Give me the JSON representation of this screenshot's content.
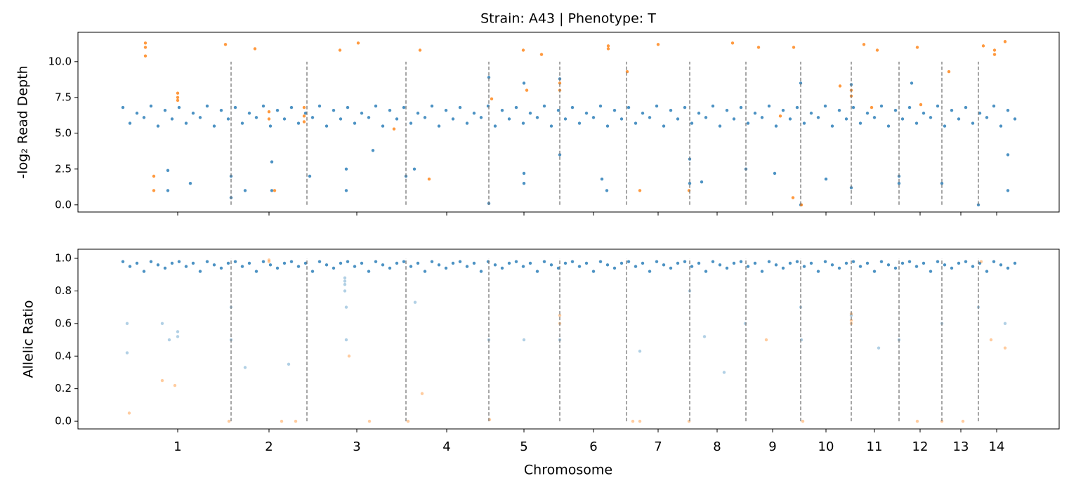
{
  "chart_data": [
    {
      "type": "scatter",
      "title": "Strain: A43 | Phenotype: T",
      "ylabel": "-log₂ Read Depth",
      "xlim": [
        0,
        1397
      ],
      "ylim": [
        -0.5,
        12.05
      ],
      "yticks": [
        {
          "value": 0,
          "label": "0.0"
        },
        {
          "value": 2.5,
          "label": "2.5"
        },
        {
          "value": 5,
          "label": "5.0"
        },
        {
          "value": 7.5,
          "label": "7.5"
        },
        {
          "value": 10,
          "label": "10.0"
        }
      ],
      "boundaries": [
        218,
        326,
        467,
        585,
        686,
        781,
        871,
        951,
        1029,
        1101,
        1169,
        1230,
        1282
      ],
      "boundary_span": [
        0,
        10
      ],
      "series": [
        {
          "color": "#1f77b4",
          "alpha": 0.8,
          "x": [
            64,
            74,
            84,
            94,
            104,
            114,
            124,
            134,
            144,
            154,
            164,
            174,
            184,
            194,
            204,
            214,
            224,
            234,
            244,
            254,
            264,
            274,
            284,
            294,
            304,
            314,
            324,
            334,
            344,
            354,
            364,
            374,
            384,
            394,
            404,
            414,
            424,
            434,
            444,
            454,
            464,
            474,
            484,
            494,
            504,
            514,
            524,
            534,
            544,
            554,
            564,
            574,
            584,
            594,
            604,
            614,
            624,
            634,
            644,
            654,
            664,
            674,
            684,
            694,
            704,
            714,
            724,
            734,
            744,
            754,
            764,
            774,
            784,
            794,
            804,
            814,
            824,
            834,
            844,
            854,
            864,
            874,
            884,
            894,
            904,
            914,
            924,
            934,
            944,
            954,
            964,
            974,
            984,
            994,
            1004,
            1014,
            1024,
            1034,
            1044,
            1054,
            1064,
            1074,
            1084,
            1094,
            1104,
            1114,
            1124,
            1134,
            1144,
            1154,
            1164,
            1174,
            1184,
            1194,
            1204,
            1214,
            1224,
            1234,
            1244,
            1254,
            1264,
            1274,
            1284,
            1294,
            1304,
            1314,
            1324,
            1334
          ],
          "values": [
            6.8,
            5.7,
            6.4,
            6.1,
            6.9,
            5.5,
            6.6,
            6.0,
            6.8,
            5.7,
            6.4,
            6.1,
            6.9,
            5.5,
            6.6,
            6.0,
            6.8,
            5.7,
            6.4,
            6.1,
            6.9,
            5.5,
            6.6,
            6.0,
            6.8,
            5.7,
            6.4,
            6.1,
            6.9,
            5.5,
            6.6,
            6.0,
            6.8,
            5.7,
            6.4,
            6.1,
            6.9,
            5.5,
            6.6,
            6.0,
            6.8,
            5.7,
            6.4,
            6.1,
            6.9,
            5.5,
            6.6,
            6.0,
            6.8,
            5.7,
            6.4,
            6.1,
            6.9,
            5.5,
            6.6,
            6.0,
            6.8,
            5.7,
            6.4,
            6.1,
            6.9,
            5.5,
            6.6,
            6.0,
            6.8,
            5.7,
            6.4,
            6.1,
            6.9,
            5.5,
            6.6,
            6.0,
            6.8,
            5.7,
            6.4,
            6.1,
            6.9,
            5.5,
            6.6,
            6.0,
            6.8,
            5.7,
            6.4,
            6.1,
            6.9,
            5.5,
            6.6,
            6.0,
            6.8,
            5.7,
            6.4,
            6.1,
            6.9,
            5.5,
            6.6,
            6.0,
            6.8,
            5.7,
            6.4,
            6.1,
            6.9,
            5.5,
            6.6,
            6.0,
            6.8,
            5.7,
            6.4,
            6.1,
            6.9,
            5.5,
            6.6,
            6.0,
            6.8,
            5.7,
            6.4,
            6.1,
            6.9,
            5.5,
            6.6,
            6.0,
            6.8,
            5.7,
            6.4,
            6.1,
            6.9,
            5.5,
            6.6,
            6.0
          ]
        },
        {
          "color": "#1f77b4",
          "alpha": 0.8,
          "x": [
            128,
            128,
            160,
            218,
            218,
            238,
            276,
            276,
            330,
            382,
            382,
            420,
            467,
            479,
            585,
            635,
            635,
            686,
            686,
            746,
            753,
            871,
            871,
            888,
            951,
            992,
            1029,
            1029,
            1065,
            1101,
            1101,
            1169,
            1169,
            1187,
            1230,
            1282,
            1324,
            1324,
            635,
            585
          ],
          "values": [
            2.4,
            1.0,
            1.5,
            2.0,
            0.5,
            1.0,
            1.0,
            3.0,
            2.0,
            2.5,
            1.0,
            3.8,
            2.0,
            2.5,
            0.1,
            2.2,
            1.5,
            3.5,
            8.8,
            1.8,
            1.0,
            3.2,
            1.5,
            1.6,
            2.5,
            2.2,
            0.0,
            8.5,
            1.8,
            1.2,
            8.4,
            2.0,
            1.5,
            8.5,
            1.5,
            0.0,
            1.0,
            3.5,
            8.5,
            8.9
          ]
        },
        {
          "color": "#ff7f0e",
          "alpha": 0.8,
          "x": [
            96,
            96,
            96,
            142,
            142,
            142,
            108,
            108,
            210,
            252,
            272,
            272,
            322,
            322,
            322,
            373,
            399,
            487,
            589,
            634,
            639,
            660,
            686,
            686,
            755,
            755,
            782,
            826,
            932,
            969,
            1019,
            1085,
            1101,
            1101,
            1119,
            1138,
            1195,
            1240,
            1289,
            1305,
            1320,
            1305,
            870,
            800,
            280,
            1030,
            1018,
            1130,
            1200,
            1000,
            450,
            500
          ],
          "values": [
            11.3,
            11.0,
            10.4,
            7.8,
            7.5,
            7.3,
            1.0,
            2.0,
            11.2,
            10.9,
            6.5,
            6.0,
            6.8,
            6.2,
            5.8,
            10.8,
            11.3,
            10.8,
            7.4,
            10.8,
            8.0,
            10.5,
            8.5,
            8.0,
            11.1,
            10.9,
            9.3,
            11.2,
            11.3,
            11.0,
            11.0,
            8.3,
            8.0,
            7.6,
            11.2,
            10.8,
            11.0,
            9.3,
            11.1,
            10.8,
            11.4,
            10.5,
            1.0,
            1.0,
            1.0,
            0.0,
            0.5,
            6.8,
            7.0,
            6.2,
            5.3,
            1.8
          ]
        }
      ]
    },
    {
      "type": "scatter",
      "ylabel": "Allelic Ratio",
      "xlabel": "Chromosome",
      "xlim": [
        0,
        1397
      ],
      "ylim": [
        -0.047,
        1.056
      ],
      "xticks": [
        {
          "value": 142,
          "label": "1"
        },
        {
          "value": 272,
          "label": "2"
        },
        {
          "value": 397,
          "label": "3"
        },
        {
          "value": 525,
          "label": "4"
        },
        {
          "value": 635,
          "label": "5"
        },
        {
          "value": 734,
          "label": "6"
        },
        {
          "value": 826,
          "label": "7"
        },
        {
          "value": 910,
          "label": "8"
        },
        {
          "value": 989,
          "label": "9"
        },
        {
          "value": 1065,
          "label": "10"
        },
        {
          "value": 1134,
          "label": "11"
        },
        {
          "value": 1199,
          "label": "12"
        },
        {
          "value": 1257,
          "label": "13"
        },
        {
          "value": 1308,
          "label": "14"
        }
      ],
      "yticks": [
        {
          "value": 0,
          "label": "0.0"
        },
        {
          "value": 0.2,
          "label": "0.2"
        },
        {
          "value": 0.4,
          "label": "0.4"
        },
        {
          "value": 0.6,
          "label": "0.6"
        },
        {
          "value": 0.8,
          "label": "0.8"
        },
        {
          "value": 1,
          "label": "1.0"
        }
      ],
      "boundaries": [
        218,
        326,
        467,
        585,
        686,
        781,
        871,
        951,
        1029,
        1101,
        1169,
        1230,
        1282
      ],
      "boundary_span": [
        0,
        1
      ],
      "series": [
        {
          "color": "#1f77b4",
          "alpha": 0.8,
          "x": [
            64,
            74,
            84,
            94,
            104,
            114,
            124,
            134,
            144,
            154,
            164,
            174,
            184,
            194,
            204,
            214,
            224,
            234,
            244,
            254,
            264,
            274,
            284,
            294,
            304,
            314,
            324,
            334,
            344,
            354,
            364,
            374,
            384,
            394,
            404,
            414,
            424,
            434,
            444,
            454,
            464,
            474,
            484,
            494,
            504,
            514,
            524,
            534,
            544,
            554,
            564,
            574,
            584,
            594,
            604,
            614,
            624,
            634,
            644,
            654,
            664,
            674,
            684,
            694,
            704,
            714,
            724,
            734,
            744,
            754,
            764,
            774,
            784,
            794,
            804,
            814,
            824,
            834,
            844,
            854,
            864,
            874,
            884,
            894,
            904,
            914,
            924,
            934,
            944,
            954,
            964,
            974,
            984,
            994,
            1004,
            1014,
            1024,
            1034,
            1044,
            1054,
            1064,
            1074,
            1084,
            1094,
            1104,
            1114,
            1124,
            1134,
            1144,
            1154,
            1164,
            1174,
            1184,
            1194,
            1204,
            1214,
            1224,
            1234,
            1244,
            1254,
            1264,
            1274,
            1284,
            1294,
            1304,
            1314,
            1324,
            1334
          ],
          "values": [
            0.98,
            0.95,
            0.97,
            0.92,
            0.98,
            0.96,
            0.94,
            0.97,
            0.98,
            0.95,
            0.97,
            0.92,
            0.98,
            0.96,
            0.94,
            0.97,
            0.98,
            0.95,
            0.97,
            0.92,
            0.98,
            0.96,
            0.94,
            0.97,
            0.98,
            0.95,
            0.97,
            0.92,
            0.98,
            0.96,
            0.94,
            0.97,
            0.98,
            0.95,
            0.97,
            0.92,
            0.98,
            0.96,
            0.94,
            0.97,
            0.98,
            0.95,
            0.97,
            0.92,
            0.98,
            0.96,
            0.94,
            0.97,
            0.98,
            0.95,
            0.97,
            0.92,
            0.98,
            0.96,
            0.94,
            0.97,
            0.98,
            0.95,
            0.97,
            0.92,
            0.98,
            0.96,
            0.94,
            0.97,
            0.98,
            0.95,
            0.97,
            0.92,
            0.98,
            0.96,
            0.94,
            0.97,
            0.98,
            0.95,
            0.97,
            0.92,
            0.98,
            0.96,
            0.94,
            0.97,
            0.98,
            0.95,
            0.97,
            0.92,
            0.98,
            0.96,
            0.94,
            0.97,
            0.98,
            0.95,
            0.97,
            0.92,
            0.98,
            0.96,
            0.94,
            0.97,
            0.98,
            0.95,
            0.97,
            0.92,
            0.98,
            0.96,
            0.94,
            0.97,
            0.98,
            0.95,
            0.97,
            0.92,
            0.98,
            0.96,
            0.94,
            0.97,
            0.98,
            0.95,
            0.97,
            0.92,
            0.98,
            0.96,
            0.94,
            0.97,
            0.98,
            0.95,
            0.97,
            0.92,
            0.98,
            0.96,
            0.94,
            0.97
          ]
        },
        {
          "color": "#1f77b4",
          "alpha": 0.35,
          "x": [
            120,
            130,
            142,
            142,
            218,
            218,
            238,
            380,
            382,
            382,
            480,
            585,
            635,
            686,
            800,
            871,
            892,
            950,
            1029,
            1030,
            1101,
            1169,
            1230,
            1282,
            1320,
            70,
            70,
            300,
            920,
            1140,
            380,
            380,
            380
          ],
          "values": [
            0.6,
            0.5,
            0.55,
            0.52,
            0.5,
            0.7,
            0.33,
            0.8,
            0.7,
            0.5,
            0.73,
            0.5,
            0.5,
            0.5,
            0.43,
            0.8,
            0.52,
            0.6,
            0.7,
            0.5,
            0.65,
            0.5,
            0.6,
            0.7,
            0.6,
            0.6,
            0.42,
            0.35,
            0.3,
            0.45,
            0.86,
            0.88,
            0.84
          ]
        },
        {
          "color": "#ff7f0e",
          "alpha": 0.4,
          "x": [
            73,
            120,
            138,
            215,
            290,
            310,
            272,
            272,
            386,
            415,
            470,
            490,
            586,
            686,
            686,
            790,
            800,
            870,
            1101,
            1101,
            1101,
            1032,
            1195,
            1230,
            1260,
            1300,
            1320,
            980,
            1286
          ],
          "values": [
            0.05,
            0.25,
            0.22,
            0.0,
            0.0,
            0.0,
            0.98,
            0.99,
            0.4,
            0.0,
            0.0,
            0.17,
            0.01,
            0.6,
            0.65,
            0.0,
            0.0,
            0.0,
            0.62,
            0.66,
            0.6,
            0.0,
            0.0,
            0.0,
            0.0,
            0.5,
            0.45,
            0.5,
            0.98
          ]
        }
      ]
    }
  ]
}
